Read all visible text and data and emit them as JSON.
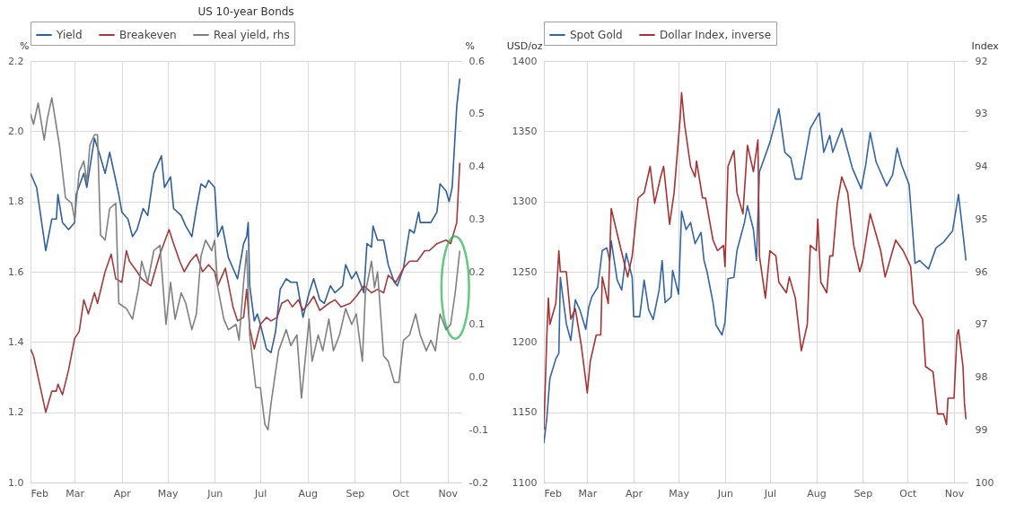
{
  "chart_data": [
    {
      "type": "line",
      "title": "US 10-year Bonds",
      "ylabel": "%",
      "y2label": "%",
      "xlim": [
        "--02-01",
        "--11-10"
      ],
      "xticks": [
        {
          "value": "--02-01",
          "label": "Feb"
        },
        {
          "value": "--03-01",
          "label": "Mar"
        },
        {
          "value": "--04-01",
          "label": "Apr"
        },
        {
          "value": "--05-01",
          "label": "May"
        },
        {
          "value": "--06-01",
          "label": "Jun"
        },
        {
          "value": "--07-01",
          "label": "Jul"
        },
        {
          "value": "--08-01",
          "label": "Aug"
        },
        {
          "value": "--09-01",
          "label": "Sep"
        },
        {
          "value": "--10-01",
          "label": "Oct"
        },
        {
          "value": "--11-01",
          "label": "Nov"
        }
      ],
      "ylim": [
        1,
        2.2
      ],
      "yticks": [
        {
          "value": 1,
          "label": "1.0"
        },
        1.2,
        1.4,
        1.6,
        1.8,
        {
          "value": 2,
          "label": "2.0"
        },
        2.2
      ],
      "y2lim": [
        -0.2,
        0.6
      ],
      "y2ticks": [
        -0.2,
        -0.1,
        {
          "value": 0,
          "label": "0.0"
        },
        0.1,
        0.2,
        0.3,
        0.4,
        0.5,
        0.6
      ],
      "grid": true,
      "legend": "top",
      "series": [
        {
          "name": "Yield",
          "color": "#2f5f9c",
          "x": [
            "--02-01",
            "--02-05",
            "--02-11",
            "--02-15",
            "--02-18",
            "--02-19",
            "--02-22",
            "--02-26",
            "--03-01",
            "--03-02",
            "--03-07",
            "--03-09",
            "--03-14",
            "--03-17",
            "--03-21",
            "--03-24",
            "--03-26",
            "--03-30",
            "--04-01",
            "--04-05",
            "--04-08",
            "--04-11",
            "--04-15",
            "--04-18",
            "--04-22",
            "--04-27",
            "--04-29",
            "--05-03",
            "--05-05",
            "--05-10",
            "--05-13",
            "--05-17",
            "--05-20",
            "--05-23",
            "--05-26",
            "--05-28",
            "--06-01",
            "--06-03",
            "--06-06",
            "--06-10",
            "--06-14",
            "--06-16",
            "--06-20",
            "--06-22",
            "--06-23",
            "--06-24",
            "--06-27",
            "--06-29",
            "--07-01",
            "--07-05",
            "--07-08",
            "--07-11",
            "--07-14",
            "--07-18",
            "--07-21",
            "--07-25",
            "--07-29",
            "--08-02",
            "--08-05",
            "--08-09",
            "--08-12",
            "--08-16",
            "--08-19",
            "--08-24",
            "--08-26",
            "--08-30",
            "--09-02",
            "--09-07",
            "--09-09",
            "--09-12",
            "--09-13",
            "--09-16",
            "--09-20",
            "--09-23",
            "--09-27",
            "--09-29",
            "--10-03",
            "--10-07",
            "--10-10",
            "--10-13",
            "--10-14",
            "--10-18",
            "--10-21",
            "--10-25",
            "--10-27",
            "--10-31",
            "--11-02",
            "--11-04",
            "--11-07",
            "--11-09"
          ],
          "values": [
            1.88,
            1.84,
            1.66,
            1.75,
            1.75,
            1.82,
            1.74,
            1.72,
            1.74,
            1.82,
            1.88,
            1.84,
            1.98,
            1.94,
            1.88,
            1.94,
            1.9,
            1.82,
            1.77,
            1.75,
            1.7,
            1.72,
            1.78,
            1.76,
            1.88,
            1.93,
            1.84,
            1.87,
            1.78,
            1.76,
            1.73,
            1.7,
            1.78,
            1.85,
            1.84,
            1.86,
            1.84,
            1.7,
            1.73,
            1.64,
            1.6,
            1.58,
            1.68,
            1.7,
            1.74,
            1.56,
            1.46,
            1.48,
            1.45,
            1.38,
            1.37,
            1.43,
            1.55,
            1.58,
            1.57,
            1.57,
            1.47,
            1.54,
            1.58,
            1.52,
            1.51,
            1.56,
            1.54,
            1.56,
            1.62,
            1.58,
            1.6,
            1.54,
            1.68,
            1.67,
            1.73,
            1.69,
            1.69,
            1.62,
            1.57,
            1.56,
            1.61,
            1.72,
            1.71,
            1.77,
            1.74,
            1.74,
            1.74,
            1.77,
            1.85,
            1.83,
            1.8,
            1.84,
            2.07,
            2.15
          ]
        },
        {
          "name": "Breakeven",
          "color": "#a33b3b",
          "x": [
            "--02-01",
            "--02-03",
            "--02-08",
            "--02-11",
            "--02-15",
            "--02-18",
            "--02-19",
            "--02-22",
            "--02-26",
            "--03-01",
            "--03-04",
            "--03-07",
            "--03-10",
            "--03-14",
            "--03-16",
            "--03-21",
            "--03-25",
            "--03-28",
            "--04-01",
            "--04-04",
            "--04-06",
            "--04-11",
            "--04-14",
            "--04-20",
            "--04-26",
            "--05-02",
            "--05-05",
            "--05-09",
            "--05-12",
            "--05-16",
            "--05-20",
            "--05-24",
            "--05-28",
            "--06-01",
            "--06-03",
            "--06-08",
            "--06-13",
            "--06-16",
            "--06-20",
            "--06-22",
            "--06-24",
            "--06-27",
            "--07-01",
            "--07-05",
            "--07-08",
            "--07-12",
            "--07-15",
            "--07-19",
            "--07-22",
            "--07-26",
            "--07-29",
            "--08-02",
            "--08-05",
            "--08-09",
            "--08-15",
            "--08-19",
            "--08-23",
            "--08-29",
            "--09-02",
            "--09-07",
            "--09-12",
            "--09-16",
            "--09-20",
            "--09-23",
            "--09-28",
            "--10-03",
            "--10-07",
            "--10-12",
            "--10-17",
            "--10-20",
            "--10-25",
            "--10-31",
            "--11-03",
            "--11-07",
            "--11-09"
          ],
          "values": [
            1.38,
            1.36,
            1.26,
            1.2,
            1.26,
            1.26,
            1.28,
            1.25,
            1.32,
            1.41,
            1.43,
            1.52,
            1.48,
            1.54,
            1.51,
            1.6,
            1.65,
            1.58,
            1.57,
            1.66,
            1.63,
            1.6,
            1.58,
            1.56,
            1.65,
            1.72,
            1.68,
            1.63,
            1.6,
            1.63,
            1.65,
            1.6,
            1.62,
            1.6,
            1.56,
            1.61,
            1.5,
            1.46,
            1.47,
            1.55,
            1.44,
            1.38,
            1.45,
            1.47,
            1.46,
            1.47,
            1.51,
            1.52,
            1.5,
            1.52,
            1.49,
            1.51,
            1.53,
            1.49,
            1.51,
            1.52,
            1.5,
            1.51,
            1.53,
            1.56,
            1.54,
            1.55,
            1.54,
            1.59,
            1.57,
            1.61,
            1.63,
            1.63,
            1.66,
            1.66,
            1.68,
            1.69,
            1.68,
            1.74,
            1.91
          ]
        },
        {
          "name": "Real yield, rhs",
          "color": "#808080",
          "axis": "y2",
          "x": [
            "--02-01",
            "--02-03",
            "--02-06",
            "--02-10",
            "--02-12",
            "--02-15",
            "--02-20",
            "--02-24",
            "--02-28",
            "--03-01",
            "--03-04",
            "--03-07",
            "--03-09",
            "--03-11",
            "--03-14",
            "--03-16",
            "--03-18",
            "--03-21",
            "--03-24",
            "--03-28",
            "--03-30",
            "--04-04",
            "--04-08",
            "--04-12",
            "--04-14",
            "--04-18",
            "--04-22",
            "--04-26",
            "--04-30",
            "--05-03",
            "--05-06",
            "--05-10",
            "--05-13",
            "--05-17",
            "--05-20",
            "--05-23",
            "--05-26",
            "--05-30",
            "--06-01",
            "--06-03",
            "--06-07",
            "--06-10",
            "--06-15",
            "--06-17",
            "--06-20",
            "--06-22",
            "--06-24",
            "--06-28",
            "--07-01",
            "--07-04",
            "--07-06",
            "--07-08",
            "--07-11",
            "--07-13",
            "--07-18",
            "--07-21",
            "--07-25",
            "--07-28",
            "--08-02",
            "--08-04",
            "--08-08",
            "--08-11",
            "--08-15",
            "--08-18",
            "--08-22",
            "--08-26",
            "--08-30",
            "--09-02",
            "--09-06",
            "--09-08",
            "--09-12",
            "--09-14",
            "--09-16",
            "--09-20",
            "--09-23",
            "--09-27",
            "--09-30",
            "--10-03",
            "--10-07",
            "--10-11",
            "--10-14",
            "--10-18",
            "--10-21",
            "--10-24",
            "--10-27",
            "--10-31",
            "--11-03",
            "--11-06",
            "--11-09"
          ],
          "values": [
            0.5,
            0.48,
            0.52,
            0.45,
            0.49,
            0.53,
            0.44,
            0.34,
            0.33,
            0.3,
            0.39,
            0.41,
            0.37,
            0.44,
            0.46,
            0.46,
            0.27,
            0.26,
            0.32,
            0.33,
            0.14,
            0.13,
            0.11,
            0.17,
            0.22,
            0.18,
            0.24,
            0.25,
            0.1,
            0.18,
            0.11,
            0.16,
            0.14,
            0.09,
            0.12,
            0.23,
            0.26,
            0.24,
            0.26,
            0.17,
            0.11,
            0.09,
            0.1,
            0.07,
            0.18,
            0.24,
            0.08,
            -0.02,
            -0.02,
            -0.09,
            -0.1,
            -0.05,
            0.01,
            0.05,
            0.09,
            0.06,
            0.08,
            -0.04,
            0.11,
            0.03,
            0.08,
            0.05,
            0.11,
            0.05,
            0.08,
            0.13,
            0.1,
            0.12,
            0.03,
            0.16,
            0.22,
            0.17,
            0.2,
            0.04,
            0.03,
            -0.01,
            -0.01,
            0.07,
            0.08,
            0.12,
            0.08,
            0.05,
            0.07,
            0.05,
            0.12,
            0.09,
            0.1,
            0.16,
            0.24
          ]
        }
      ]
    },
    {
      "type": "line",
      "ylabel": "USD/oz",
      "y2label": "Index",
      "xlim": [
        "--02-01",
        "--11-10"
      ],
      "xticks": [
        {
          "value": "--02-01",
          "label": "Feb"
        },
        {
          "value": "--03-01",
          "label": "Mar"
        },
        {
          "value": "--04-01",
          "label": "Apr"
        },
        {
          "value": "--05-01",
          "label": "May"
        },
        {
          "value": "--06-01",
          "label": "Jun"
        },
        {
          "value": "--07-01",
          "label": "Jul"
        },
        {
          "value": "--08-01",
          "label": "Aug"
        },
        {
          "value": "--09-01",
          "label": "Sep"
        },
        {
          "value": "--10-01",
          "label": "Oct"
        },
        {
          "value": "--11-01",
          "label": "Nov"
        }
      ],
      "ylim": [
        1100,
        1400
      ],
      "yticks": [
        1100,
        1150,
        1200,
        1250,
        1300,
        1350,
        1400
      ],
      "y2lim": [
        100,
        92
      ],
      "y2ticks": [
        92,
        93,
        94,
        95,
        96,
        97,
        98,
        99,
        100
      ],
      "grid": true,
      "legend": "top",
      "series": [
        {
          "name": "Spot Gold",
          "color": "#3465a4",
          "x": [
            "--02-01",
            "--02-03",
            "--02-05",
            "--02-09",
            "--02-11",
            "--02-12",
            "--02-16",
            "--02-19",
            "--02-22",
            "--02-25",
            "--02-29",
            "--03-02",
            "--03-04",
            "--03-08",
            "--03-11",
            "--03-14",
            "--03-16",
            "--03-17",
            "--03-21",
            "--03-24",
            "--03-27",
            "--03-31",
            "--04-01",
            "--04-05",
            "--04-08",
            "--04-11",
            "--04-14",
            "--04-18",
            "--04-20",
            "--04-22",
            "--04-26",
            "--04-27",
            "--05-01",
            "--05-03",
            "--05-06",
            "--05-09",
            "--05-12",
            "--05-16",
            "--05-18",
            "--05-20",
            "--05-24",
            "--05-26",
            "--05-30",
            "--06-01",
            "--06-03",
            "--06-07",
            "--06-09",
            "--06-14",
            "--06-16",
            "--06-20",
            "--06-22",
            "--06-24",
            "--07-01",
            "--07-07",
            "--07-11",
            "--07-15",
            "--07-18",
            "--07-22",
            "--07-28",
            "--08-03",
            "--08-06",
            "--08-10",
            "--08-12",
            "--08-18",
            "--08-25",
            "--08-31",
            "--09-03",
            "--09-06",
            "--09-10",
            "--09-17",
            "--09-21",
            "--09-24",
            "--09-27",
            "--10-02",
            "--10-06",
            "--10-09",
            "--10-15",
            "--10-20",
            "--10-25",
            "--10-31",
            "--11-04",
            "--11-07",
            "--11-09"
          ],
          "values": [
            1128,
            1146,
            1174,
            1188,
            1192,
            1246,
            1213,
            1201,
            1230,
            1223,
            1209,
            1225,
            1232,
            1239,
            1265,
            1267,
            1258,
            1272,
            1244,
            1237,
            1263,
            1246,
            1218,
            1218,
            1244,
            1223,
            1216,
            1237,
            1258,
            1228,
            1232,
            1251,
            1234,
            1293,
            1280,
            1285,
            1270,
            1278,
            1258,
            1250,
            1228,
            1212,
            1205,
            1214,
            1245,
            1246,
            1265,
            1285,
            1297,
            1280,
            1258,
            1321,
            1342,
            1366,
            1335,
            1331,
            1316,
            1316,
            1352,
            1363,
            1335,
            1347,
            1335,
            1352,
            1324,
            1309,
            1326,
            1349,
            1328,
            1311,
            1319,
            1338,
            1326,
            1312,
            1256,
            1258,
            1252,
            1267,
            1271,
            1279,
            1305,
            1277,
            1258
          ]
        },
        {
          "name": "Dollar Index, inverse",
          "color": "#a83232",
          "axis": "y2",
          "x": [
            "--02-01",
            "--02-03",
            "--02-04",
            "--02-05",
            "--02-09",
            "--02-11",
            "--02-12",
            "--02-16",
            "--02-19",
            "--02-22",
            "--02-26",
            "--03-01",
            "--03-03",
            "--03-07",
            "--03-10",
            "--03-11",
            "--03-15",
            "--03-17",
            "--03-22",
            "--03-28",
            "--03-31",
            "--04-04",
            "--04-08",
            "--04-12",
            "--04-15",
            "--04-19",
            "--04-21",
            "--04-25",
            "--04-28",
            "--05-02",
            "--05-03",
            "--05-05",
            "--05-09",
            "--05-12",
            "--05-13",
            "--05-17",
            "--05-19",
            "--05-24",
            "--05-27",
            "--05-31",
            "--06-01",
            "--06-03",
            "--06-07",
            "--06-09",
            "--06-13",
            "--06-16",
            "--06-20",
            "--06-23",
            "--06-24",
            "--06-28",
            "--07-01",
            "--07-05",
            "--07-07",
            "--07-12",
            "--07-14",
            "--07-18",
            "--07-20",
            "--07-22",
            "--07-26",
            "--07-28",
            "--08-01",
            "--08-02",
            "--08-04",
            "--08-08",
            "--08-10",
            "--08-12",
            "--08-15",
            "--08-18",
            "--08-22",
            "--08-26",
            "--08-30",
            "--09-01",
            "--09-06",
            "--09-09",
            "--09-13",
            "--09-16",
            "--09-20",
            "--09-23",
            "--09-28",
            "--10-03",
            "--10-05",
            "--10-07",
            "--10-11",
            "--10-13",
            "--10-18",
            "--10-21",
            "--10-25",
            "--10-27",
            "--10-28",
            "--11-01",
            "--11-03",
            "--11-04",
            "--11-07",
            "--11-08",
            "--11-09"
          ],
          "values": [
            99.0,
            97.2,
            96.5,
            97.0,
            96.6,
            95.6,
            96.0,
            96.0,
            96.9,
            96.7,
            97.4,
            98.3,
            97.7,
            97.2,
            97.2,
            96.1,
            96.6,
            94.8,
            95.4,
            96.1,
            95.7,
            94.6,
            94.5,
            94.0,
            94.7,
            94.2,
            94.0,
            95.1,
            94.5,
            93.1,
            92.6,
            93.2,
            94.0,
            94.2,
            93.9,
            94.6,
            94.6,
            95.4,
            95.6,
            95.5,
            95.9,
            94.0,
            93.7,
            94.5,
            94.9,
            93.6,
            94.1,
            93.5,
            95.7,
            96.5,
            95.6,
            95.7,
            96.2,
            96.4,
            96.1,
            96.5,
            97.0,
            97.5,
            97.0,
            95.5,
            95.6,
            95.0,
            96.2,
            96.4,
            95.7,
            95.7,
            94.7,
            94.2,
            94.5,
            95.5,
            96.0,
            95.8,
            94.9,
            95.2,
            95.6,
            96.1,
            95.7,
            95.4,
            95.6,
            95.9,
            96.6,
            96.7,
            96.9,
            97.8,
            97.9,
            98.7,
            98.7,
            98.9,
            98.4,
            98.4,
            97.2,
            97.1,
            97.8,
            98.5,
            98.8
          ]
        }
      ]
    }
  ]
}
